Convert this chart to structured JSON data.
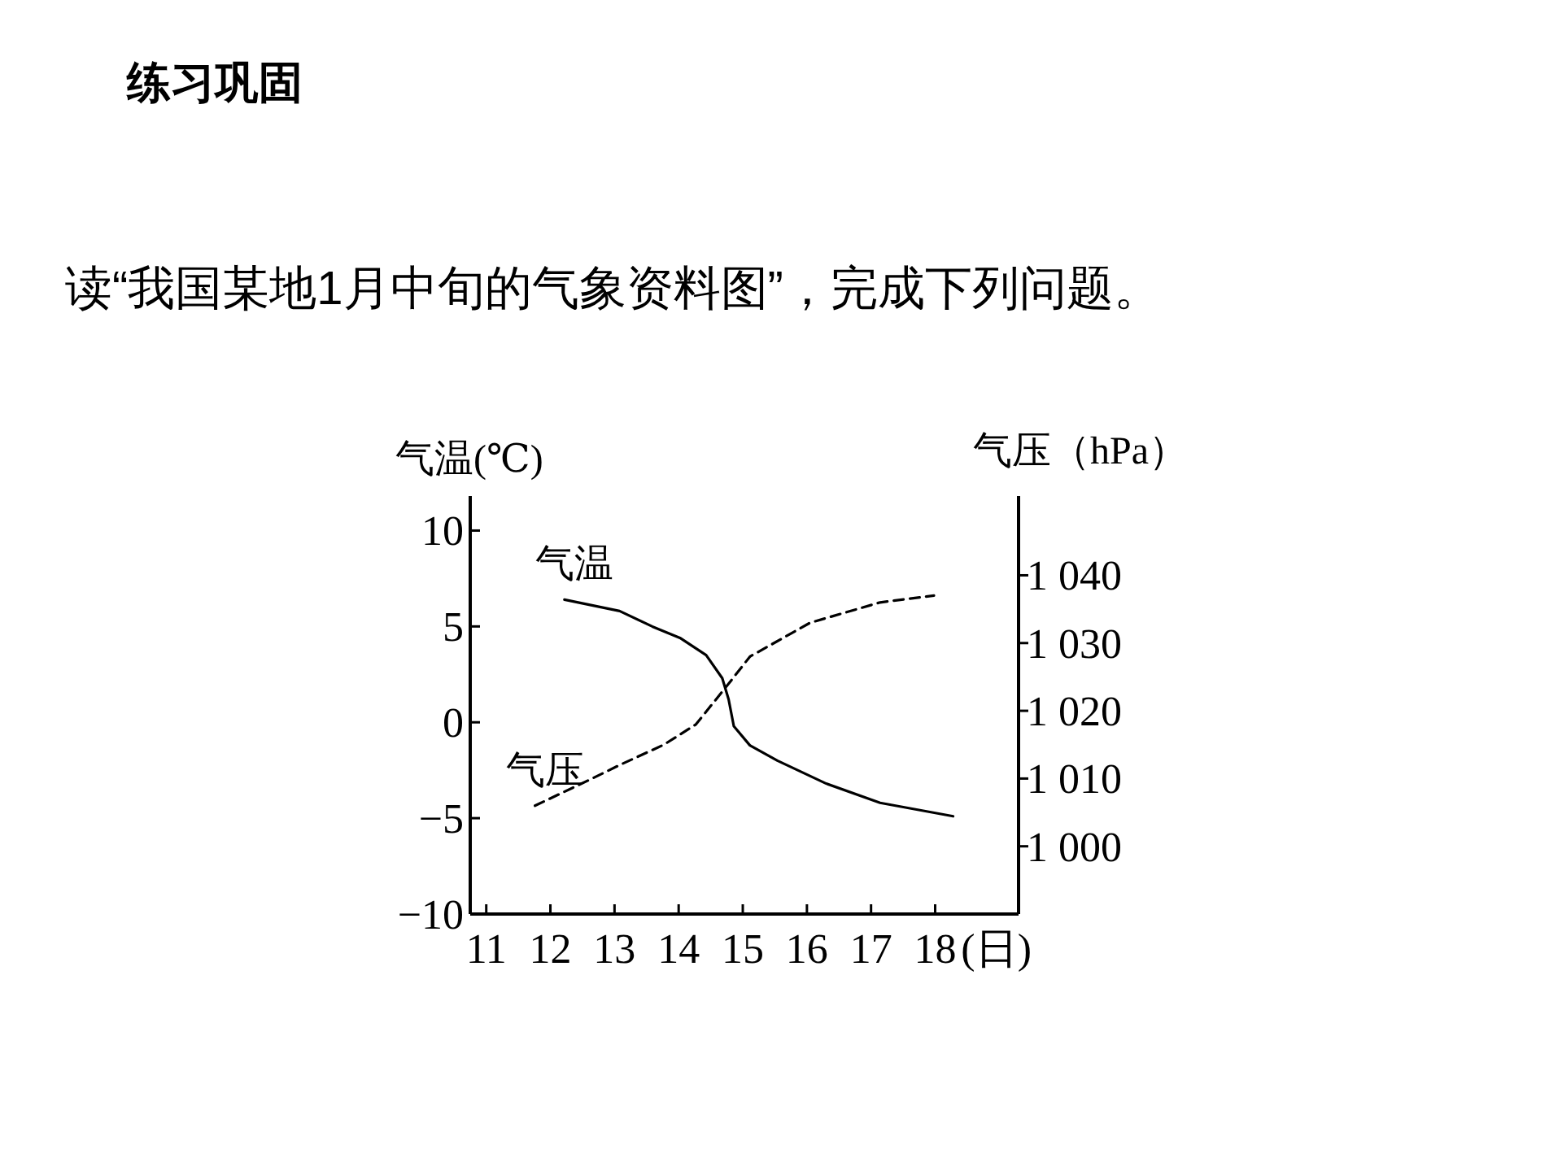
{
  "chart_data": {
    "type": "line",
    "title": "练习巩固",
    "subtitle": "读“我国某地1月中旬的气象资料图”，完成下列问题。",
    "xlabel": "(日)",
    "ylabel": "气温(℃)",
    "y2label": "气压（hPa）",
    "xlim": [
      10.75,
      19.3
    ],
    "xticks": [
      11,
      12,
      13,
      14,
      15,
      16,
      17,
      18
    ],
    "ylim": [
      -10,
      11.8
    ],
    "yticks": [
      {
        "value": -10,
        "label": "−10"
      },
      {
        "value": -5,
        "label": "−5"
      },
      0,
      5,
      10
    ],
    "y2lim": [
      990,
      1051.7
    ],
    "y2ticks": [
      {
        "value": 1000,
        "label": "1 000"
      },
      {
        "value": 1010,
        "label": "1 010"
      },
      {
        "value": 1020,
        "label": "1 020"
      },
      {
        "value": 1030,
        "label": "1 030"
      },
      {
        "value": 1040,
        "label": "1 040"
      }
    ],
    "grid": false,
    "legend": false,
    "marker": "none",
    "series": [
      {
        "name": "气温",
        "color": "#000000",
        "line_style": "solid",
        "x": [
          12.22,
          13.08,
          13.59,
          14.02,
          14.43,
          14.68,
          14.78,
          14.86,
          15.11,
          15.54,
          16.3,
          17.14,
          18.28
        ],
        "values": [
          6.4,
          5.8,
          5.0,
          4.4,
          3.5,
          2.3,
          1.2,
          -0.2,
          -1.2,
          -2.0,
          -3.2,
          -4.2,
          -4.9
        ]
      },
      {
        "name": "气压",
        "color": "#000000",
        "line_style": "dashed",
        "axis": "y2",
        "x": [
          11.76,
          12.65,
          13.08,
          13.77,
          14.27,
          14.78,
          15.11,
          16.05,
          17.14,
          17.98
        ],
        "values": [
          1006,
          1010,
          1012,
          1015,
          1018,
          1024,
          1028,
          1033,
          1036,
          1037
        ]
      }
    ]
  }
}
